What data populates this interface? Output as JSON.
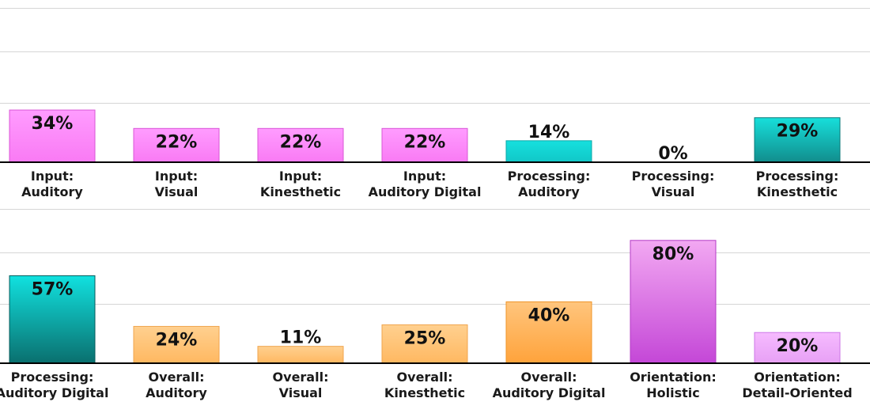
{
  "chart_data": [
    {
      "type": "bar",
      "categories": [
        [
          "Input:",
          "Auditory"
        ],
        [
          "Input:",
          "Visual"
        ],
        [
          "Input:",
          "Kinesthetic"
        ],
        [
          "Input:",
          "Auditory Digital"
        ],
        [
          "Processing:",
          "Auditory"
        ],
        [
          "Processing:",
          "Visual"
        ],
        [
          "Processing:",
          "Kinesthetic"
        ]
      ],
      "values": [
        34,
        22,
        22,
        22,
        14,
        0,
        29
      ],
      "value_labels": [
        "34%",
        "22%",
        "22%",
        "22%",
        "14%",
        "0%",
        "29%"
      ],
      "fill_styles": [
        "pink",
        "pink",
        "pink",
        "pink",
        "teal-light",
        "teal-light",
        "teal-dark"
      ],
      "ylim": [
        0,
        100
      ],
      "grid": true
    },
    {
      "type": "bar",
      "categories": [
        [
          "Processing:",
          "Auditory Digital"
        ],
        [
          "Overall:",
          "Auditory"
        ],
        [
          "Overall:",
          "Visual"
        ],
        [
          "Overall:",
          "Kinesthetic"
        ],
        [
          "Overall:",
          "Auditory Digital"
        ],
        [
          "Orientation:",
          "Holistic"
        ],
        [
          "Orientation:",
          "Detail-Oriented"
        ]
      ],
      "values": [
        57,
        24,
        11,
        25,
        40,
        80,
        20
      ],
      "value_labels": [
        "57%",
        "24%",
        "11%",
        "25%",
        "40%",
        "80%",
        "20%"
      ],
      "fill_styles": [
        "teal-deep",
        "orange",
        "orange",
        "orange",
        "orange-deep",
        "purple",
        "lilac"
      ],
      "ylim": [
        0,
        100
      ],
      "grid": true
    }
  ],
  "colors": {
    "pink_top": "#ff9cff",
    "pink_bottom": "#f97af4",
    "pink_stroke": "#d957d6",
    "teal_light_top": "#16e0de",
    "teal_light_bottom": "#11c7c7",
    "teal_light_stroke": "#0aa8a8",
    "teal_dark_top": "#17dfdb",
    "teal_dark_bottom": "#118d8c",
    "teal_dark_stroke": "#0c7978",
    "teal_deep_top": "#11e1df",
    "teal_deep_bottom": "#0a6f6e",
    "teal_deep_stroke": "#075c5c",
    "orange_top": "#ffd08f",
    "orange_bottom": "#ffb861",
    "orange_stroke": "#f0a54e",
    "orange_deep_top": "#ffc57d",
    "orange_deep_bottom": "#ffa33b",
    "orange_deep_stroke": "#ef9529",
    "purple_top": "#f2a8f2",
    "purple_bottom": "#c447d7",
    "purple_stroke": "#b43bc6",
    "lilac_top": "#f6bbff",
    "lilac_bottom": "#e7a0f5",
    "lilac_stroke": "#cc78e6",
    "grid": "#d6d6d6",
    "axis": "#000000",
    "text": "#111111"
  }
}
